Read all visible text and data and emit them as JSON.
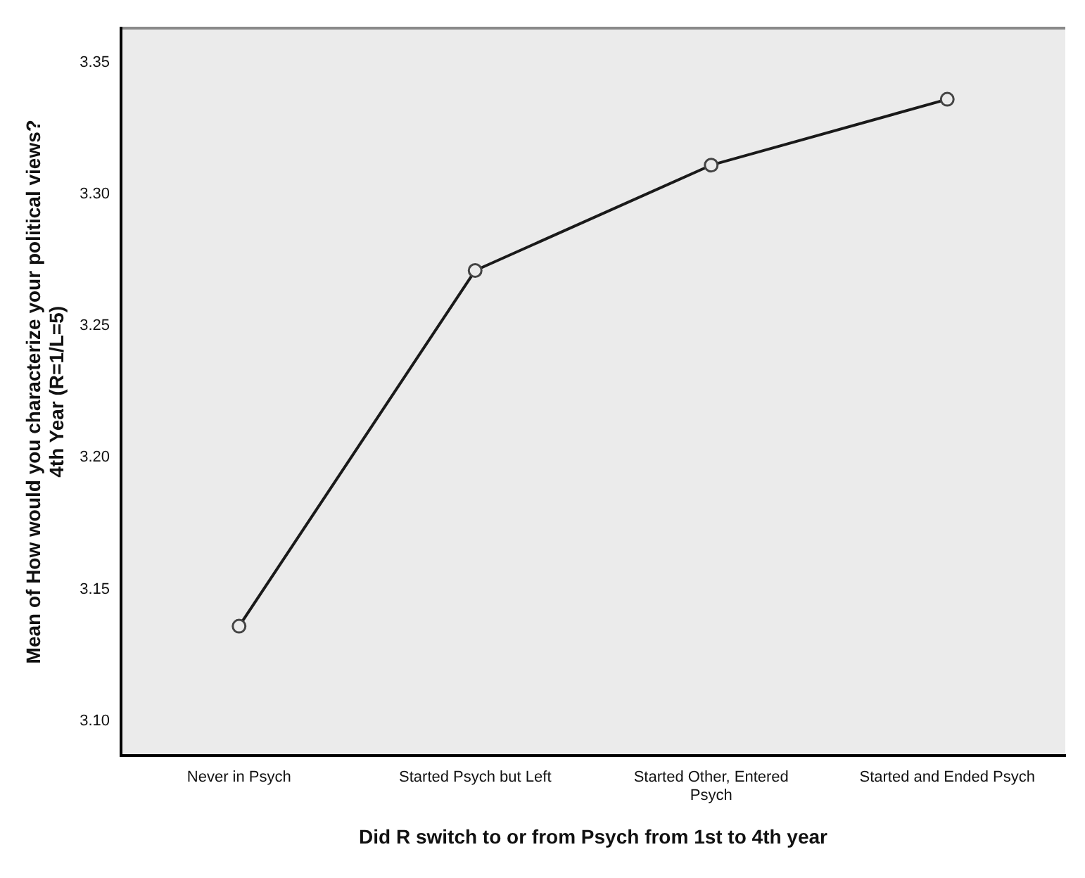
{
  "chart_data": {
    "type": "line",
    "xlabel": "Did R switch to or from Psych from 1st to 4th year",
    "ylabel": "Mean of How would you characterize your political views?\n4th Year (R=1/L=5)",
    "categories": [
      "Never in Psych",
      "Started Psych but Left",
      "Started Other, Entered Psych",
      "Started and Ended Psych"
    ],
    "series": [
      {
        "color": "#1a1a1a",
        "values": [
          3.136,
          3.271,
          3.311,
          3.336
        ]
      }
    ],
    "ylim": [
      3.087,
      3.363
    ],
    "yticks": [
      {
        "value": 3.1,
        "label": "3.10"
      },
      3.15,
      {
        "value": 3.2,
        "label": "3.20"
      },
      3.25,
      {
        "value": 3.3,
        "label": "3.30"
      },
      3.35
    ],
    "grid": false,
    "legend": false,
    "marker": "circle",
    "line_style": "solid"
  }
}
